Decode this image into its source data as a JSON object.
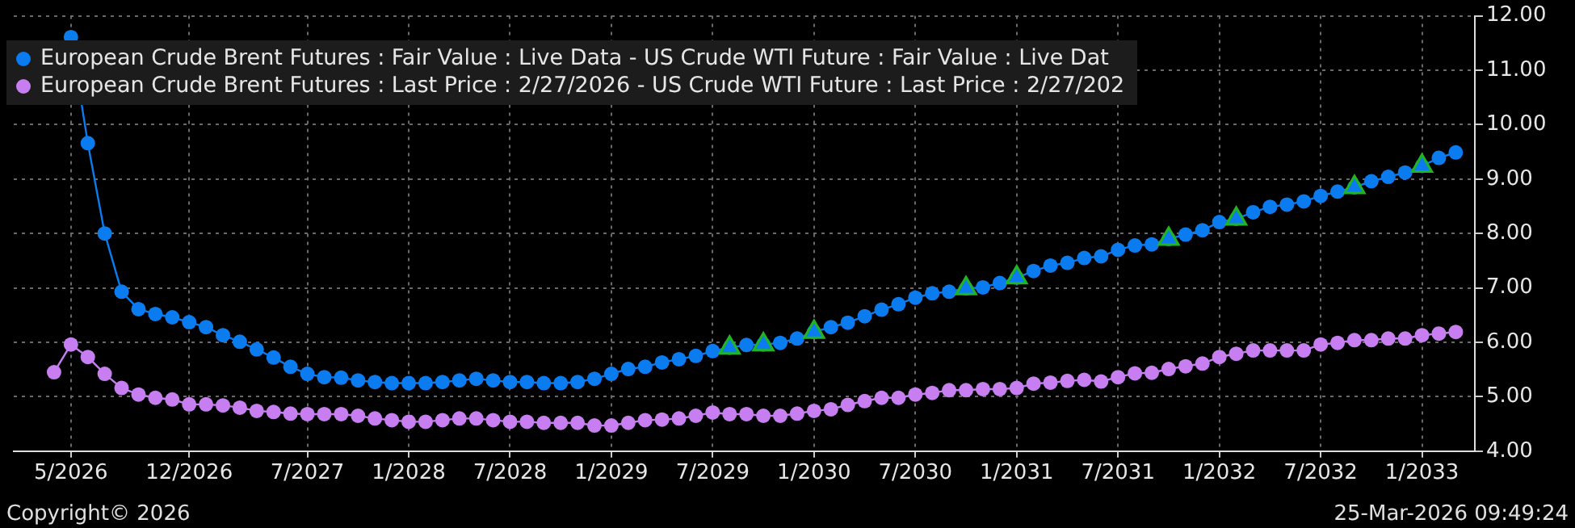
{
  "chart_data": {
    "type": "line",
    "series": [
      {
        "name": "European Crude Brent Futures : Fair Value : Live Data - US Crude WTI Future : Fair Value : Live Dat",
        "color": "#0a7cf0",
        "x": [
          "2026-05",
          "2026-06",
          "2026-07",
          "2026-08",
          "2026-09",
          "2026-10",
          "2026-11",
          "2026-12",
          "2027-01",
          "2027-02",
          "2027-03",
          "2027-04",
          "2027-05",
          "2027-06",
          "2027-07",
          "2027-08",
          "2027-09",
          "2027-10",
          "2027-11",
          "2027-12",
          "2028-01",
          "2028-02",
          "2028-03",
          "2028-04",
          "2028-05",
          "2028-06",
          "2028-07",
          "2028-08",
          "2028-09",
          "2028-10",
          "2028-11",
          "2028-12",
          "2029-01",
          "2029-02",
          "2029-03",
          "2029-04",
          "2029-05",
          "2029-06",
          "2029-07",
          "2029-08",
          "2029-09",
          "2029-10",
          "2029-11",
          "2029-12",
          "2030-01",
          "2030-02",
          "2030-03",
          "2030-04",
          "2030-05",
          "2030-06",
          "2030-07",
          "2030-08",
          "2030-09",
          "2030-10",
          "2030-11",
          "2030-12",
          "2031-01",
          "2031-02",
          "2031-03",
          "2031-04",
          "2031-05",
          "2031-06",
          "2031-07",
          "2031-08",
          "2031-09",
          "2031-10",
          "2031-11",
          "2031-12",
          "2032-01",
          "2032-02",
          "2032-03",
          "2032-04",
          "2032-05",
          "2032-06",
          "2032-07",
          "2032-08",
          "2032-09",
          "2032-10",
          "2032-11",
          "2032-12",
          "2033-01",
          "2033-02",
          "2033-03"
        ],
        "values": [
          11.61,
          9.66,
          8.0,
          6.93,
          6.61,
          6.52,
          6.46,
          6.37,
          6.28,
          6.13,
          6.01,
          5.87,
          5.72,
          5.55,
          5.42,
          5.36,
          5.35,
          5.3,
          5.27,
          5.25,
          5.25,
          5.25,
          5.27,
          5.3,
          5.33,
          5.3,
          5.27,
          5.27,
          5.25,
          5.25,
          5.27,
          5.33,
          5.42,
          5.51,
          5.55,
          5.63,
          5.69,
          5.75,
          5.84,
          5.9,
          5.95,
          5.96,
          5.99,
          6.07,
          6.19,
          6.28,
          6.36,
          6.48,
          6.6,
          6.7,
          6.82,
          6.9,
          6.93,
          6.99,
          7.01,
          7.09,
          7.19,
          7.31,
          7.41,
          7.46,
          7.55,
          7.58,
          7.7,
          7.78,
          7.8,
          7.9,
          7.98,
          8.06,
          8.21,
          8.27,
          8.39,
          8.49,
          8.53,
          8.59,
          8.69,
          8.77,
          8.85,
          8.96,
          9.04,
          9.12,
          9.24,
          9.39,
          9.49
        ]
      },
      {
        "name": "European Crude Brent Futures : Last Price : 2/27/2026 - US Crude WTI Future : Last Price : 2/27/202",
        "color": "#c77ef0",
        "x": [
          "2026-04",
          "2026-05",
          "2026-06",
          "2026-07",
          "2026-08",
          "2026-09",
          "2026-10",
          "2026-11",
          "2026-12",
          "2027-01",
          "2027-02",
          "2027-03",
          "2027-04",
          "2027-05",
          "2027-06",
          "2027-07",
          "2027-08",
          "2027-09",
          "2027-10",
          "2027-11",
          "2027-12",
          "2028-01",
          "2028-02",
          "2028-03",
          "2028-04",
          "2028-05",
          "2028-06",
          "2028-07",
          "2028-08",
          "2028-09",
          "2028-10",
          "2028-11",
          "2028-12",
          "2029-01",
          "2029-02",
          "2029-03",
          "2029-04",
          "2029-05",
          "2029-06",
          "2029-07",
          "2029-08",
          "2029-09",
          "2029-10",
          "2029-11",
          "2029-12",
          "2030-01",
          "2030-02",
          "2030-03",
          "2030-04",
          "2030-05",
          "2030-06",
          "2030-07",
          "2030-08",
          "2030-09",
          "2030-10",
          "2030-11",
          "2030-12",
          "2031-01",
          "2031-02",
          "2031-03",
          "2031-04",
          "2031-05",
          "2031-06",
          "2031-07",
          "2031-08",
          "2031-09",
          "2031-10",
          "2031-11",
          "2031-12",
          "2032-01",
          "2032-02",
          "2032-03",
          "2032-04",
          "2032-05",
          "2032-06",
          "2032-07",
          "2032-08",
          "2032-09",
          "2032-10",
          "2032-11",
          "2032-12",
          "2033-01",
          "2033-02",
          "2033-03"
        ],
        "values": [
          5.45,
          5.96,
          5.73,
          5.42,
          5.16,
          5.04,
          4.98,
          4.95,
          4.86,
          4.86,
          4.84,
          4.8,
          4.74,
          4.72,
          4.69,
          4.68,
          4.68,
          4.68,
          4.65,
          4.6,
          4.57,
          4.54,
          4.54,
          4.57,
          4.6,
          4.6,
          4.57,
          4.54,
          4.54,
          4.52,
          4.52,
          4.52,
          4.47,
          4.47,
          4.52,
          4.57,
          4.58,
          4.6,
          4.65,
          4.71,
          4.68,
          4.68,
          4.65,
          4.65,
          4.69,
          4.74,
          4.77,
          4.85,
          4.92,
          4.98,
          4.98,
          5.04,
          5.07,
          5.12,
          5.12,
          5.14,
          5.14,
          5.16,
          5.24,
          5.26,
          5.29,
          5.31,
          5.28,
          5.36,
          5.43,
          5.44,
          5.51,
          5.56,
          5.61,
          5.73,
          5.79,
          5.85,
          5.85,
          5.85,
          5.85,
          5.96,
          5.99,
          6.04,
          6.04,
          6.07,
          6.07,
          6.13,
          6.16,
          6.19
        ]
      },
      {
        "type": "scatter",
        "marker": "triangle",
        "color": "#22b522",
        "x": [
          "2029-08",
          "2029-10",
          "2030-01",
          "2030-10",
          "2031-01",
          "2031-10",
          "2032-02",
          "2032-09",
          "2033-01"
        ],
        "values": [
          5.9,
          5.96,
          6.19,
          6.99,
          7.19,
          7.9,
          8.27,
          8.85,
          9.24
        ]
      }
    ],
    "xlim": [
      "2026-01-20",
      "2033-04-05"
    ],
    "xticks": [
      {
        "value": "2026-05",
        "label": "5/2026"
      },
      {
        "value": "2026-12",
        "label": "12/2026"
      },
      {
        "value": "2027-07",
        "label": "7/2027"
      },
      {
        "value": "2028-01",
        "label": "1/2028"
      },
      {
        "value": "2028-07",
        "label": "7/2028"
      },
      {
        "value": "2029-01",
        "label": "1/2029"
      },
      {
        "value": "2029-07",
        "label": "7/2029"
      },
      {
        "value": "2030-01",
        "label": "1/2030"
      },
      {
        "value": "2030-07",
        "label": "7/2030"
      },
      {
        "value": "2031-01",
        "label": "1/2031"
      },
      {
        "value": "2031-07",
        "label": "7/2031"
      },
      {
        "value": "2032-01",
        "label": "1/2032"
      },
      {
        "value": "2032-07",
        "label": "7/2032"
      },
      {
        "value": "2033-01",
        "label": "1/2033"
      }
    ],
    "ylim": [
      4,
      12
    ],
    "yticks": [
      {
        "value": 4,
        "label": "4.00"
      },
      {
        "value": 5,
        "label": "5.00"
      },
      {
        "value": 6,
        "label": "6.00"
      },
      {
        "value": 7,
        "label": "7.00"
      },
      {
        "value": 8,
        "label": "8.00"
      },
      {
        "value": 9,
        "label": "9.00"
      },
      {
        "value": 10,
        "label": "10.00"
      },
      {
        "value": 11,
        "label": "11.00"
      },
      {
        "value": 12,
        "label": "12.00"
      }
    ],
    "grid": true,
    "legend": "top left",
    "marker": "circle",
    "annotations": [
      "Copyright© 2026",
      "25-Mar-2026 09:49:24"
    ]
  }
}
